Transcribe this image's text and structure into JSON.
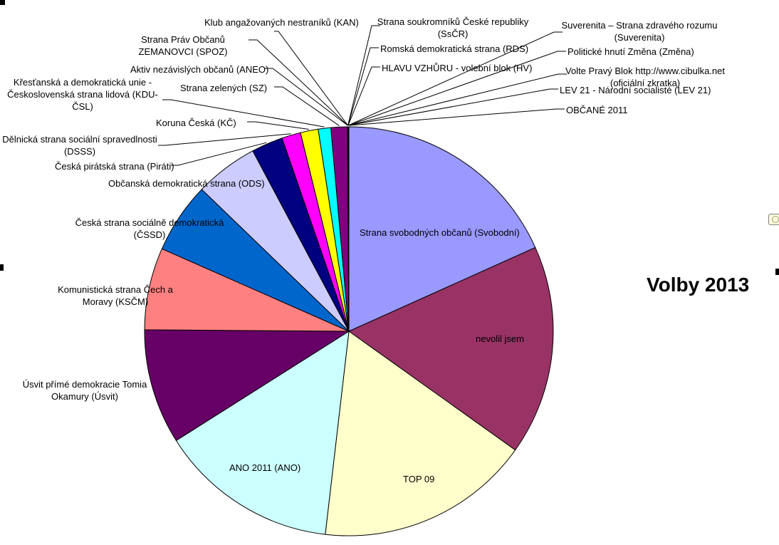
{
  "title": "Volby 2013",
  "chart_data": {
    "type": "pie",
    "title": "Volby 2013",
    "legend": "none",
    "center": [
      490,
      465
    ],
    "radius": 287,
    "start_angle_deg": 0,
    "direction": "clockwise",
    "slices": [
      {
        "label": "Strana svobodných občanů (Svobodní)",
        "pct": 18.3,
        "color": "#9999FF"
      },
      {
        "label": "nevolil jsem",
        "pct": 16.6,
        "color": "#993366"
      },
      {
        "label": "TOP 09",
        "pct": 17.0,
        "color": "#FFFFCC"
      },
      {
        "label": "ANO 2011 (ANO)",
        "pct": 14.2,
        "color": "#CCFFFF"
      },
      {
        "label": "Úsvit přímé demokracie Tomia Okamury (Úsvit)",
        "pct": 9.1,
        "color": "#660066"
      },
      {
        "label": "Komunistická strana Čech a Moravy (KSČM)",
        "pct": 6.5,
        "color": "#FF8080"
      },
      {
        "label": "Česká strana sociálně demokratická (ČSSD)",
        "pct": 5.6,
        "color": "#0066CC"
      },
      {
        "label": "Občanská demokratická strana (ODS)",
        "pct": 5.0,
        "color": "#CCCCFF"
      },
      {
        "label": "Česká pirátská strana (Piráti)",
        "pct": 2.5,
        "color": "#000080"
      },
      {
        "label": "Dělnická strana sociální spravedlnosti (DSSS)",
        "pct": 1.5,
        "color": "#FF00FF"
      },
      {
        "label": "Koruna Česká (KČ)",
        "pct": 1.4,
        "color": "#FFFF00"
      },
      {
        "label": "Křesťanská a demokratická unie - Československá strana lidová (KDU-ČSL)",
        "pct": 1.0,
        "color": "#00FFFF"
      },
      {
        "label": "Strana zelených (SZ)",
        "pct": 1.3,
        "color": "#800080"
      },
      {
        "label": "Aktiv nezávislých občanů (ANEO)",
        "pct": 0.01,
        "color": "#800000"
      },
      {
        "label": "Strana Práv Občanů ZEMANOVCI (SPOZ)",
        "pct": 0.01,
        "color": "#008080"
      },
      {
        "label": "Klub angažovaných nestraníků (KAN)",
        "pct": 0.01,
        "color": "#0000FF"
      },
      {
        "label": "Strana soukromníků České republiky (SsČR)",
        "pct": 0.01,
        "color": "#00CCFF"
      },
      {
        "label": "Romská demokratická strana (RDS)",
        "pct": 0.01,
        "color": "#CCFFFF"
      },
      {
        "label": "HLAVU VZHŮRU - volební blok (HV)",
        "pct": 0.01,
        "color": "#CCFFCC"
      },
      {
        "label": "Suverenita – Strana zdravého rozumu (Suverenita)",
        "pct": 0.01,
        "color": "#FFFF99"
      },
      {
        "label": "Politické hnutí Změna (Změna)",
        "pct": 0.01,
        "color": "#99CCFF"
      },
      {
        "label": "Volte Pravý Blok http://www.cibulka.net (oficiální zkratka)",
        "pct": 0.01,
        "color": "#FF99CC"
      },
      {
        "label": "LEV 21 - Národní socialisté (LEV 21)",
        "pct": 0.01,
        "color": "#CC99FF"
      },
      {
        "label": "OBČANÉ 2011",
        "pct": 0.01,
        "color": "#FFCC99"
      }
    ]
  }
}
